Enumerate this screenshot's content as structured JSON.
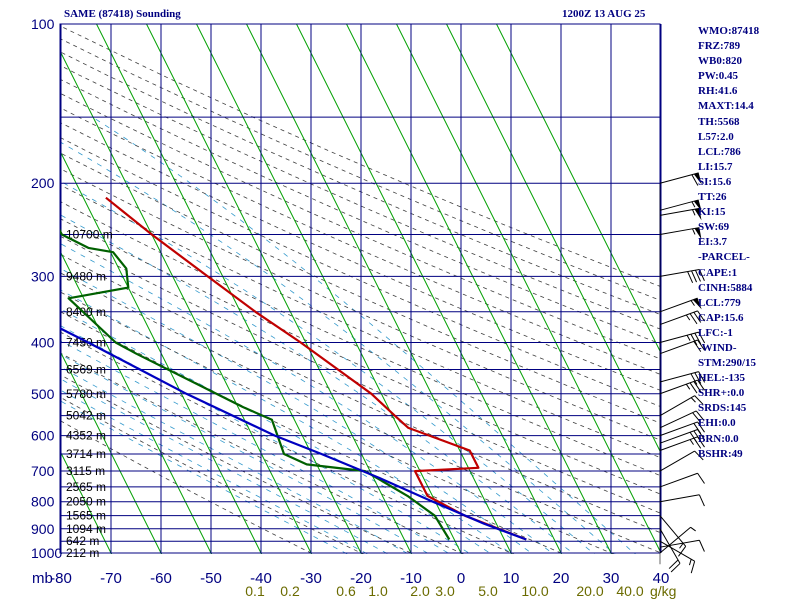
{
  "header": {
    "title": "SAME (87418) Sounding",
    "datetime": "1200Z 13 AUG 25"
  },
  "stats": [
    "WMO:87418",
    "FRZ:789",
    "WB0:820",
    "PW:0.45",
    "RH:41.6",
    "MAXT:14.4",
    "TH:5568",
    "L57:2.0",
    "LCL:786",
    "LI:15.7",
    "SI:15.6",
    "TT:26",
    "KI:15",
    "SW:69",
    "EI:3.7",
    "-PARCEL-",
    "CAPE:1",
    "CINH:5884",
    "LCL:779",
    "CAP:15.6",
    "LFC:-1",
    "-WIND-",
    "STM:290/15",
    "HEL:-135",
    "SHR+:0.0",
    "SRDS:145",
    "EHI:0.0",
    "BRN:0.0",
    "BSHR:49"
  ],
  "colors": {
    "grid": "#000080",
    "isotherm": "#00a000",
    "dry_adiabat": "#404040",
    "moist_adiabat": "#3399cc",
    "temperature": "#c00000",
    "dewpoint": "#006000",
    "parcel": "#0000c0",
    "wind_barb": "#000000"
  },
  "chart_data": {
    "type": "skew-t",
    "x_units_label": "mb",
    "pressure_levels": [
      100,
      200,
      300,
      400,
      500,
      600,
      700,
      800,
      900,
      1000
    ],
    "pressure_range": [
      100,
      1050
    ],
    "temperature_ticks": [
      -80,
      -70,
      -60,
      -50,
      -40,
      -30,
      -20,
      -10,
      0,
      10,
      20,
      30,
      40
    ],
    "mixing_ratio_ticks": [
      "0.1",
      "0.2",
      "0.6",
      "1.0",
      "2.0",
      "3.0",
      "5.0",
      "10.0",
      "20.0",
      "40.0"
    ],
    "mixing_ratio_unit": "g/kg",
    "height_labels": [
      {
        "label": "10700 m",
        "p": 250
      },
      {
        "label": "9480 m",
        "p": 300
      },
      {
        "label": "8400 m",
        "p": 350
      },
      {
        "label": "7450 m",
        "p": 400
      },
      {
        "label": "6569 m",
        "p": 450
      },
      {
        "label": "5780 m",
        "p": 500
      },
      {
        "label": "5042 m",
        "p": 550
      },
      {
        "label": "4352 m",
        "p": 600
      },
      {
        "label": "3714 m",
        "p": 650
      },
      {
        "label": "3115 m",
        "p": 700
      },
      {
        "label": "2565 m",
        "p": 750
      },
      {
        "label": "2050 m",
        "p": 800
      },
      {
        "label": "1565 m",
        "p": 850
      },
      {
        "label": "1094 m",
        "p": 900
      },
      {
        "label": "642 m",
        "p": 950
      },
      {
        "label": "212 m",
        "p": 1000
      }
    ],
    "series": [
      {
        "key": "temperature",
        "points": [
          {
            "p": 943,
            "t": 14.4
          },
          {
            "p": 850,
            "t": 4.5
          },
          {
            "p": 780,
            "t": -1.0
          },
          {
            "p": 700,
            "t": -1.0
          },
          {
            "p": 690,
            "t": 12.0
          },
          {
            "p": 640,
            "t": 12.0
          },
          {
            "p": 580,
            "t": 2.0
          },
          {
            "p": 550,
            "t": 0.5
          },
          {
            "p": 500,
            "t": -2.0
          },
          {
            "p": 400,
            "t": -11.0
          },
          {
            "p": 350,
            "t": -17.0
          },
          {
            "p": 300,
            "t": -23.0
          },
          {
            "p": 250,
            "t": -30.0
          },
          {
            "p": 213,
            "t": -35.5
          }
        ]
      },
      {
        "key": "dewpoint",
        "points": [
          {
            "p": 943,
            "t": -1.0
          },
          {
            "p": 850,
            "t": -1.5
          },
          {
            "p": 780,
            "t": -5.0
          },
          {
            "p": 700,
            "t": -11.0
          },
          {
            "p": 680,
            "t": -22.0
          },
          {
            "p": 650,
            "t": -25.5
          },
          {
            "p": 560,
            "t": -24.5
          },
          {
            "p": 530,
            "t": -29.0
          },
          {
            "p": 420,
            "t": -45.0
          },
          {
            "p": 400,
            "t": -48.0
          },
          {
            "p": 330,
            "t": -53.0
          },
          {
            "p": 315,
            "t": -40.0
          },
          {
            "p": 290,
            "t": -38.5
          },
          {
            "p": 270,
            "t": -39.5
          },
          {
            "p": 265,
            "t": -44.0
          },
          {
            "p": 250,
            "t": -48.0
          },
          {
            "p": 230,
            "t": -48.0
          },
          {
            "p": 215,
            "t": -50.5
          }
        ]
      },
      {
        "key": "parcel",
        "points": [
          {
            "p": 943,
            "t": 14.4
          },
          {
            "p": 880,
            "t": 7.5
          },
          {
            "p": 800,
            "t": -0.5
          },
          {
            "p": 720,
            "t": -9.0
          },
          {
            "p": 650,
            "t": -18.0
          },
          {
            "p": 600,
            "t": -25.5
          },
          {
            "p": 500,
            "t": -39.0
          },
          {
            "p": 400,
            "t": -53.5
          },
          {
            "p": 300,
            "t": -73.0
          },
          {
            "p": 250,
            "t": -83.5
          },
          {
            "p": 205,
            "t": -94.0
          }
        ]
      }
    ],
    "wind_barbs": [
      {
        "p": 200,
        "dir": 255,
        "spd": 60
      },
      {
        "p": 225,
        "dir": 255,
        "spd": 55
      },
      {
        "p": 230,
        "dir": 260,
        "spd": 55
      },
      {
        "p": 250,
        "dir": 260,
        "spd": 55
      },
      {
        "p": 300,
        "dir": 260,
        "spd": 40
      },
      {
        "p": 350,
        "dir": 250,
        "spd": 55
      },
      {
        "p": 370,
        "dir": 250,
        "spd": 35
      },
      {
        "p": 400,
        "dir": 255,
        "spd": 35
      },
      {
        "p": 420,
        "dir": 250,
        "spd": 20
      },
      {
        "p": 475,
        "dir": 255,
        "spd": 30
      },
      {
        "p": 500,
        "dir": 250,
        "spd": 35
      },
      {
        "p": 550,
        "dir": 240,
        "spd": 15
      },
      {
        "p": 580,
        "dir": 245,
        "spd": 20
      },
      {
        "p": 600,
        "dir": 250,
        "spd": 20
      },
      {
        "p": 620,
        "dir": 250,
        "spd": 30
      },
      {
        "p": 640,
        "dir": 250,
        "spd": 25
      },
      {
        "p": 700,
        "dir": 240,
        "spd": 10
      },
      {
        "p": 750,
        "dir": 250,
        "spd": 10
      },
      {
        "p": 800,
        "dir": 260,
        "spd": 10
      },
      {
        "p": 850,
        "dir": 320,
        "spd": 15
      },
      {
        "p": 900,
        "dir": 330,
        "spd": 20
      },
      {
        "p": 950,
        "dir": 300,
        "spd": 15
      },
      {
        "p": 975,
        "dir": 260,
        "spd": 10
      },
      {
        "p": 1000,
        "dir": 230,
        "spd": 5
      }
    ]
  }
}
